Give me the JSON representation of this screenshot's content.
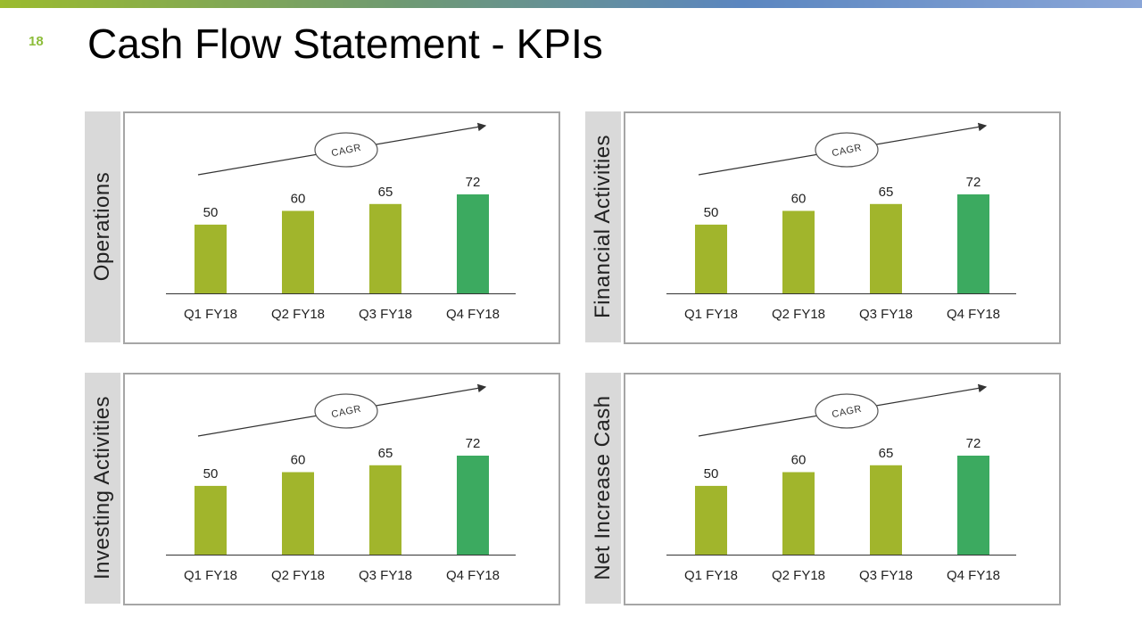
{
  "page_number": "18",
  "title": "Cash Flow Statement - KPIs",
  "colors": {
    "bar_primary": "#a1b52c",
    "bar_highlight": "#3caa60",
    "side_panel": "#d9d9d9",
    "frame": "#a6a6a6",
    "page_number": "#8dbd3a"
  },
  "chart_data": [
    {
      "type": "bar",
      "side_label": "Operations",
      "categories": [
        "Q1 FY18",
        "Q2 FY18",
        "Q3 FY18",
        "Q4 FY18"
      ],
      "values": [
        50,
        60,
        65,
        72
      ],
      "highlight_index": 3,
      "annotation": "CAGR",
      "ylim": [
        0,
        80
      ]
    },
    {
      "type": "bar",
      "side_label": "Financial Activities",
      "categories": [
        "Q1 FY18",
        "Q2 FY18",
        "Q3 FY18",
        "Q4 FY18"
      ],
      "values": [
        50,
        60,
        65,
        72
      ],
      "highlight_index": 3,
      "annotation": "CAGR",
      "ylim": [
        0,
        80
      ]
    },
    {
      "type": "bar",
      "side_label": "Investing Activities",
      "categories": [
        "Q1 FY18",
        "Q2 FY18",
        "Q3 FY18",
        "Q4 FY18"
      ],
      "values": [
        50,
        60,
        65,
        72
      ],
      "highlight_index": 3,
      "annotation": "CAGR",
      "ylim": [
        0,
        80
      ]
    },
    {
      "type": "bar",
      "side_label": "Net Increase Cash",
      "categories": [
        "Q1 FY18",
        "Q2 FY18",
        "Q3 FY18",
        "Q4 FY18"
      ],
      "values": [
        50,
        60,
        65,
        72
      ],
      "highlight_index": 3,
      "annotation": "CAGR",
      "ylim": [
        0,
        80
      ]
    }
  ]
}
